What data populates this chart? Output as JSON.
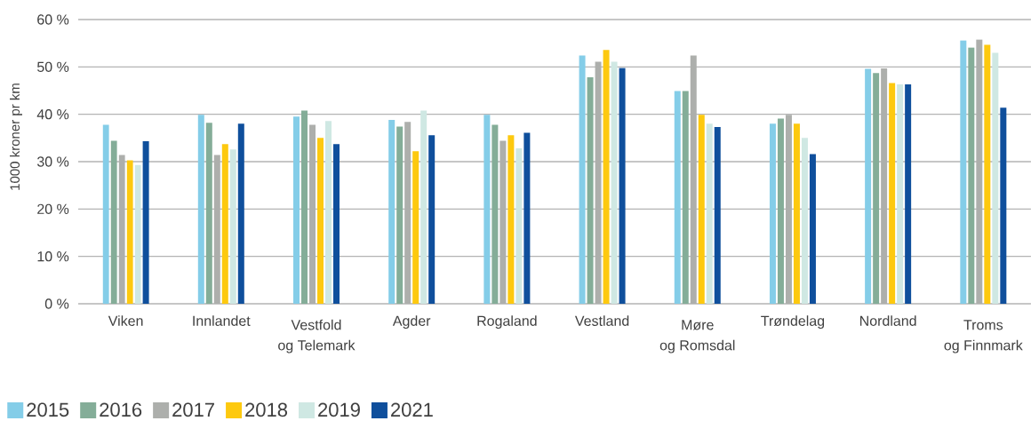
{
  "chart_data": {
    "type": "bar",
    "ylabel": "1000 kroner pr km",
    "categories": [
      "Viken",
      "Innlandet",
      "Vestfold og Telemark",
      "Agder",
      "Rogaland",
      "Vestland",
      "Møre og Romsdal",
      "Trøndelag",
      "Nordland",
      "Troms og Finnmark"
    ],
    "series": [
      {
        "name": "2015",
        "color": "#84cde8",
        "values": [
          37.8,
          39.9,
          39.5,
          38.8,
          39.9,
          52.4,
          44.9,
          38.0,
          49.6,
          55.6
        ]
      },
      {
        "name": "2016",
        "color": "#84ad98",
        "values": [
          34.4,
          38.2,
          40.8,
          37.4,
          37.8,
          47.8,
          44.9,
          39.1,
          48.7,
          54.1
        ]
      },
      {
        "name": "2017",
        "color": "#adafac",
        "values": [
          31.4,
          31.4,
          37.8,
          38.4,
          34.4,
          51.1,
          52.4,
          39.9,
          49.7,
          55.8
        ]
      },
      {
        "name": "2018",
        "color": "#fdc90f",
        "values": [
          30.3,
          33.7,
          35.0,
          32.2,
          35.6,
          53.6,
          39.9,
          38.0,
          46.6,
          54.7
        ]
      },
      {
        "name": "2019",
        "color": "#cfe8e3",
        "values": [
          29.3,
          32.6,
          38.6,
          40.8,
          32.8,
          51.1,
          38.0,
          35.0,
          46.3,
          53.0
        ]
      },
      {
        "name": "2021",
        "color": "#0f4f9c",
        "values": [
          34.3,
          38.0,
          33.7,
          35.6,
          36.1,
          49.8,
          37.3,
          31.6,
          46.3,
          41.4
        ]
      }
    ],
    "ylim": [
      0,
      60
    ],
    "yticks": [
      {
        "value": 0,
        "label": "0 %"
      },
      {
        "value": 10,
        "label": "10 %"
      },
      {
        "value": 20,
        "label": "20 %"
      },
      {
        "value": 30,
        "label": "30 %"
      },
      {
        "value": 40,
        "label": "40 %"
      },
      {
        "value": 50,
        "label": "50 %"
      },
      {
        "value": 60,
        "label": "60 %"
      }
    ],
    "grid": "y",
    "legend": "bottom left"
  }
}
